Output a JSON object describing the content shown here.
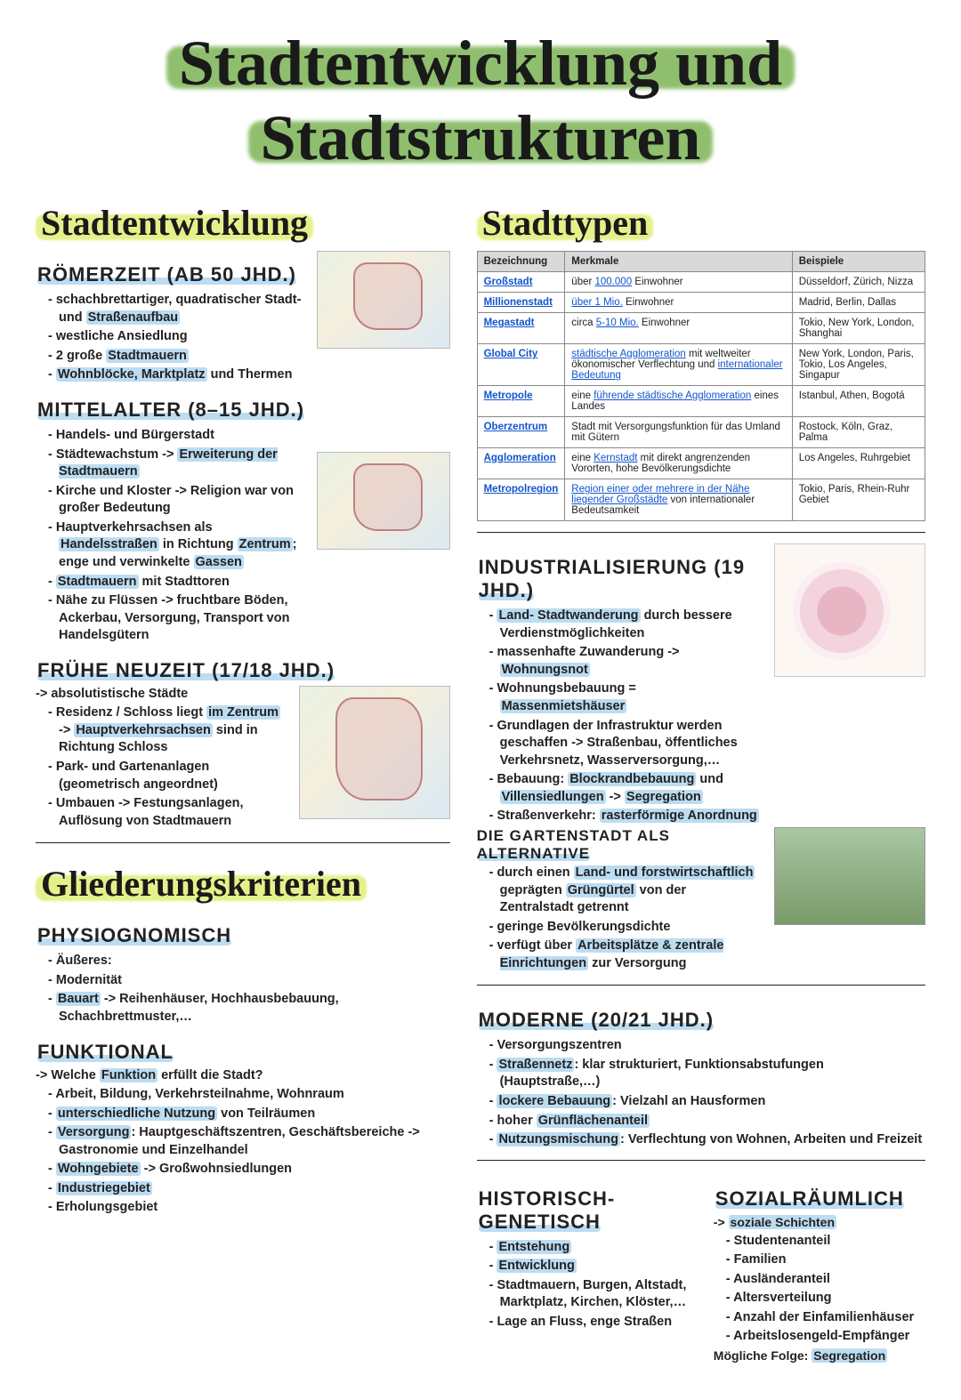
{
  "colors": {
    "title_hl": "#8fbf6e",
    "section_hl": "#e6f08a",
    "blue_hl": "#bcdcf2",
    "text": "#1a1a1a",
    "link": "#1155cc",
    "table_header": "#d9d9d9"
  },
  "title": {
    "line1": "Stadtentwicklung und",
    "line2": "Stadtstrukturen"
  },
  "left": {
    "section": "Stadtentwicklung",
    "romer": {
      "heading": "RÖMERZEIT (AB 50 JHD.)",
      "items": [
        "schachbrettartiger, quadratischer Stadt- und <span class='hl-blue'>Straßenaufbau</span>",
        "westliche Ansiedlung",
        "2 große <span class='hl-blue'>Stadtmauern</span>",
        "<span class='hl-blue'>Wohnblöcke, Marktplatz</span> und Thermen"
      ]
    },
    "mittel": {
      "heading": "MITTELALTER (8–15 JHD.)",
      "items": [
        "Handels- und Bürgerstadt",
        "Städtewachstum -> <span class='hl-blue'>Erweiterung der Stadtmauern</span>",
        "Kirche und Kloster -> Religion war von großer Bedeutung",
        "Hauptverkehrsachsen als <span class='hl-blue'>Handelsstraßen</span> in Richtung <span class='hl-blue'>Zentrum</span>; enge und verwinkelte <span class='hl-blue'>Gassen</span>",
        "<span class='hl-blue'>Stadtmauern</span> mit Stadttoren",
        "Nähe zu Flüssen -> fruchtbare Böden, Ackerbau, Versorgung, Transport von Handelsgütern"
      ]
    },
    "neuzeit": {
      "heading": "FRÜHE NEUZEIT (17/18 JHD.)",
      "lead": "-> absolutistische Städte",
      "items": [
        "Residenz / Schloss liegt <span class='hl-blue'>im Zentrum</span> -> <span class='hl-blue'>Hauptverkehrsachsen</span> sind in Richtung Schloss",
        "Park- und Gartenanlagen (geometrisch angeordnet)",
        "Umbauen -> Festungsanlagen, Auflösung von Stadtmauern"
      ]
    },
    "glied": {
      "section": "Gliederungskriterien",
      "phys": {
        "heading": "PHYSIOGNOMISCH",
        "items": [
          "Äußeres:",
          "Modernität",
          "<span class='hl-blue'>Bauart</span> -> Reihenhäuser, Hochhausbebauung, Schachbrettmuster,…"
        ]
      },
      "funk": {
        "heading": "FUNKTIONAL",
        "lead": "-> Welche <span class='hl-blue'>Funktion</span> erfüllt die Stadt?",
        "items": [
          "Arbeit, Bildung, Verkehrsteilnahme, Wohnraum",
          "<span class='hl-blue'>unterschiedliche Nutzung</span> von Teilräumen",
          "<span class='hl-blue'>Versorgung</span>: Hauptgeschäftszentren, Geschäftsbereiche -> Gastronomie und Einzelhandel",
          "<span class='hl-blue'>Wohngebiete</span> -> Großwohnsiedlungen",
          "<span class='hl-blue'>Industriegebiet</span>",
          "Erholungsgebiet"
        ]
      }
    }
  },
  "right": {
    "section": "Stadttypen",
    "table": {
      "headers": [
        "Bezeichnung",
        "Merkmale",
        "Beispiele"
      ],
      "rows": [
        [
          "Großstadt",
          "über <span class='tbl-link'>100.000</span> Einwohner",
          "Düsseldorf, Zürich, Nizza"
        ],
        [
          "Millionenstadt",
          "<span class='tbl-link'>über 1 Mio.</span> Einwohner",
          "Madrid, Berlin, Dallas"
        ],
        [
          "Megastadt",
          "circa <span class='tbl-link'>5-10 Mio.</span> Einwohner",
          "Tokio, New York, London, Shanghai"
        ],
        [
          "Global City",
          "<span class='tbl-link'>städtische Agglomeration</span> mit weltweiter ökonomischer Verflechtung und <span class='tbl-link'>internationaler Bedeutung</span>",
          "New York, London, Paris, Tokio, Los Angeles, Singapur"
        ],
        [
          "Metropole",
          "eine <span class='tbl-link'>führende städtische Agglomeration</span> eines Landes",
          "Istanbul, Athen, Bogotá"
        ],
        [
          "Oberzentrum",
          "Stadt mit Versorgungsfunktion für das Umland mit Gütern",
          "Rostock, Köln, Graz, Palma"
        ],
        [
          "Agglomeration",
          "eine <span class='tbl-link'>Kernstadt</span> mit direkt angrenzenden Vororten, hohe Bevölkerungsdichte",
          "Los Angeles, Ruhrgebiet"
        ],
        [
          "Metropolregion",
          "<span class='tbl-link'>Region einer oder mehrere in der Nähe liegender Großstädte</span> von internationaler Bedeutsamkeit",
          "Tokio, Paris, Rhein-Ruhr Gebiet"
        ]
      ]
    },
    "indus": {
      "heading": "INDUSTRIALISIERUNG (19 JHD.)",
      "items": [
        "<span class='hl-blue'>Land- Stadtwanderung</span> durch bessere Verdienstmöglichkeiten",
        "massenhafte Zuwanderung -> <span class='hl-blue'>Wohnungsnot</span>",
        "Wohnungsbebauung = <span class='hl-blue'>Massenmietshäuser</span>",
        "Grundlagen der Infrastruktur werden geschaffen -> Straßenbau, öffentliches Verkehrsnetz, Wasserversorgung,…",
        "Bebauung: <span class='hl-blue'>Blockrandbebauung</span> und <span class='hl-blue'>Villensiedlungen</span> -> <span class='hl-blue'>Segregation</span>",
        "Straßenverkehr: <span class='hl-blue'>rasterförmige Anordnung</span>"
      ],
      "garten_heading": "DIE GARTENSTADT ALS ALTERNATIVE",
      "garten_items": [
        "durch einen <span class='hl-blue'>Land- und forstwirtschaftlich</span> geprägten <span class='hl-blue'>Grüngürtel</span> von der Zentralstadt getrennt",
        "geringe Bevölkerungsdichte",
        "verfügt über <span class='hl-blue'>Arbeitsplätze &amp; zentrale Einrichtungen</span> zur Versorgung"
      ]
    },
    "moderne": {
      "heading": "MODERNE (20/21 JHD.)",
      "items": [
        "Versorgungszentren",
        "<span class='hl-blue'>Straßennetz</span>: klar strukturiert, Funktionsabstufungen (Hauptstraße,…)",
        "<span class='hl-blue'>lockere Bebauung</span>: Vielzahl an Hausformen",
        "hoher <span class='hl-blue'>Grünflächenanteil</span>",
        "<span class='hl-blue'>Nutzungsmischung</span>: Verflechtung von Wohnen, Arbeiten und Freizeit"
      ]
    },
    "hist": {
      "heading": "HISTORISCH-GENETISCH",
      "items": [
        "<span class='hl-blue'>Entstehung</span>",
        "<span class='hl-blue'>Entwicklung</span>",
        "Stadtmauern, Burgen, Altstadt, Marktplatz, Kirchen, Klöster,…",
        "Lage an Fluss, enge Straßen"
      ]
    },
    "sozial": {
      "heading": "SOZIALRÄUMLICH",
      "lead": "-> <span class='hl-blue'>soziale Schichten</span>",
      "items": [
        "Studentenanteil",
        "Familien",
        "Ausländeranteil",
        "Altersverteilung",
        "Anzahl der Einfamilienhäuser",
        "Arbeitslosengeld-Empfänger"
      ],
      "foot": "Mögliche Folge: <span class='hl-blue'>Segregation</span>"
    }
  }
}
